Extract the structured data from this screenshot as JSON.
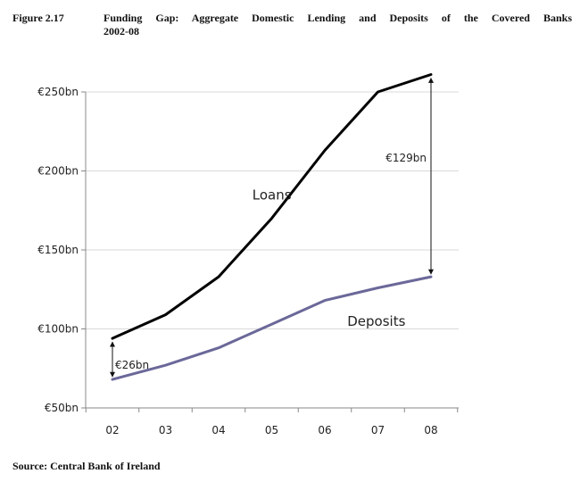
{
  "figure": {
    "label": "Figure 2.17",
    "title_line1": "Funding Gap: Aggregate Domestic Lending and Deposits of the Covered Banks",
    "title_line2": "2002-08",
    "source": "Source: Central Bank of Ireland"
  },
  "chart_data": {
    "type": "line",
    "title": "Funding Gap: Aggregate Domestic Lending and Deposits of the Covered Banks 2002-08",
    "categories": [
      "02",
      "03",
      "04",
      "05",
      "06",
      "07",
      "08"
    ],
    "y_tick_labels": [
      "€50bn",
      "€100bn",
      "€150bn",
      "€200bn",
      "€250bn"
    ],
    "y_tick_values": [
      50,
      100,
      150,
      200,
      250
    ],
    "ylim": [
      50,
      268
    ],
    "grid": true,
    "series": [
      {
        "name": "Loans",
        "values": [
          94,
          109,
          133,
          170,
          213,
          250,
          261
        ],
        "color": "#000000"
      },
      {
        "name": "Deposits",
        "values": [
          68,
          77,
          88,
          103,
          118,
          126,
          133
        ],
        "color": "#6b6899"
      }
    ],
    "annotations": [
      {
        "label": "€26bn",
        "category": "02",
        "from": 68,
        "to": 94
      },
      {
        "label": "€129bn",
        "category": "08",
        "from": 133,
        "to": 261
      }
    ]
  }
}
